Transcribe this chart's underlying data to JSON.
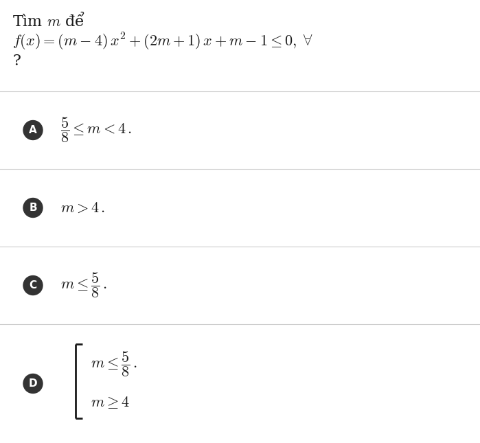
{
  "background_color": "#ffffff",
  "title_line1": "Tìm $m$ để",
  "title_line2": "$f(x) = (m-4)\\,x^2 + (2m+1)\\,x + m - 1 \\leq 0,\\ \\forall$",
  "title_line3": "?",
  "options": [
    {
      "label": "A",
      "text": "$\\dfrac{5}{8} \\leq m < 4\\,.$"
    },
    {
      "label": "B",
      "text": "$m > 4\\,.$"
    },
    {
      "label": "C",
      "text": "$m \\leq \\dfrac{5}{8}\\,.$"
    },
    {
      "label": "D",
      "text_line1": "$m \\leq \\dfrac{5}{8}\\,.$",
      "text_line2": "$m \\geq 4$"
    }
  ],
  "circle_color": "#333333",
  "circle_text_color": "#ffffff",
  "label_fontsize": 11,
  "option_fontsize": 16,
  "title_fontsize": 16,
  "separator_color": "#cccccc",
  "text_color": "#1a1a1a",
  "fig_width": 6.99,
  "fig_height": 6.45,
  "dpi": 100
}
